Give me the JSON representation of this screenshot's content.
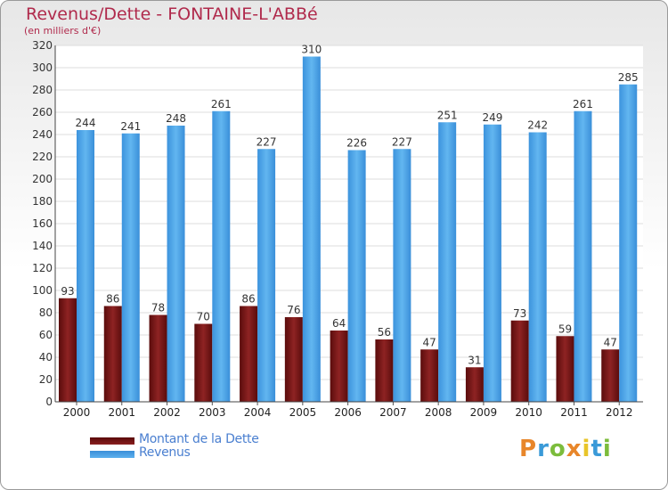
{
  "chart_data": {
    "type": "bar",
    "title": "Revenus/Dette - FONTAINE-L'ABBé",
    "subtitle": "(en milliers d'€)",
    "xlabel": "",
    "ylabel": "",
    "ylim": [
      0,
      320
    ],
    "ytick_step": 20,
    "grid": true,
    "categories": [
      "2000",
      "2001",
      "2002",
      "2003",
      "2004",
      "2005",
      "2006",
      "2007",
      "2008",
      "2009",
      "2010",
      "2011",
      "2012"
    ],
    "series": [
      {
        "name": "Montant de la Dette",
        "color": "#6e1414",
        "values": [
          93,
          86,
          78,
          70,
          86,
          76,
          64,
          56,
          47,
          31,
          73,
          59,
          47
        ]
      },
      {
        "name": "Revenus",
        "color": "#4aa3e6",
        "values": [
          244,
          241,
          248,
          261,
          227,
          310,
          226,
          227,
          251,
          249,
          242,
          261,
          285
        ]
      }
    ],
    "legend_position": "bottom-left"
  },
  "legend": {
    "debt_label": "Montant de la Dette",
    "revenue_label": "Revenus"
  },
  "logo": {
    "text": "Proxiti"
  }
}
